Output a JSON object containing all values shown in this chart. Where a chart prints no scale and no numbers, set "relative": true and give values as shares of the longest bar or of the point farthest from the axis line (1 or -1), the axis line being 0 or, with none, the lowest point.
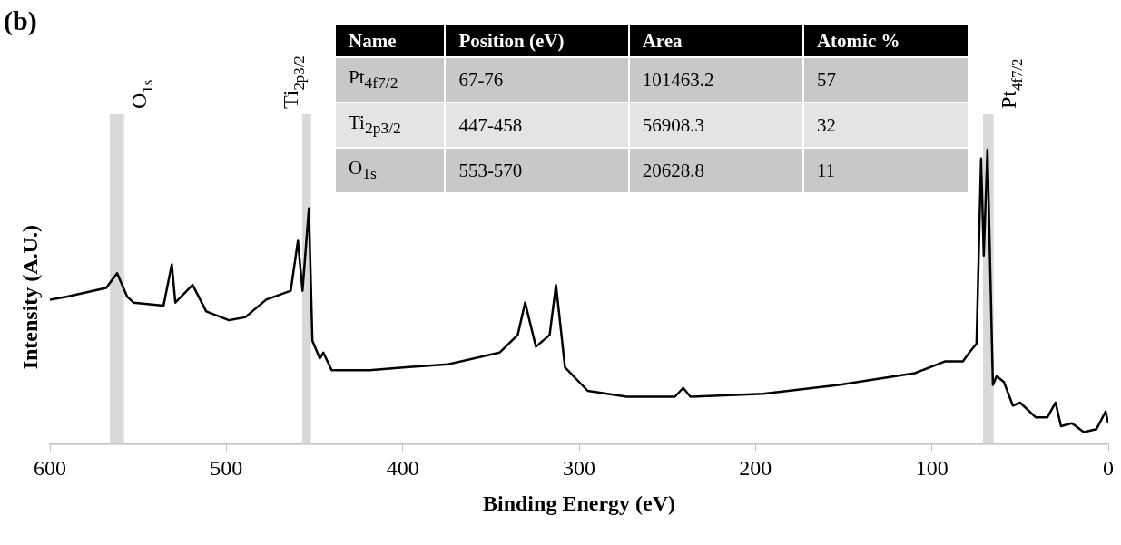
{
  "chart_data": {
    "type": "line",
    "relative": true,
    "xlabel": "Binding Energy (eV)",
    "ylabel": "Intensity (A.U.)",
    "xlim": [
      600,
      0
    ],
    "xticks": [
      600,
      500,
      400,
      300,
      200,
      100,
      0
    ],
    "series": [
      {
        "color": "#000000",
        "x": [
          600,
          590.7,
          568.1,
          561.9,
          556.2,
          552.6,
          535.6,
          530.9,
          528.9,
          519.1,
          511.4,
          498.5,
          489.3,
          477.4,
          463.5,
          459.4,
          456.8,
          453.2,
          451.2,
          447.0,
          445.0,
          440.3,
          418.7,
          398.1,
          374.4,
          345.1,
          334.8,
          330.6,
          324.5,
          316.7,
          313.1,
          308.0,
          295.1,
          273.0,
          245.7,
          241.0,
          236.9,
          195.7,
          152.9,
          109.7,
          92.7,
          82.4,
          78.8,
          74.7,
          72.1,
          70.6,
          68.5,
          65.4,
          63.3,
          59.2,
          54.1,
          50.0,
          41.2,
          34.5,
          29.9,
          26.8,
          20.6,
          13.9,
          6.7,
          1.5,
          0
        ],
        "values": [
          0.49,
          0.5,
          0.53,
          0.58,
          0.5,
          0.48,
          0.47,
          0.61,
          0.48,
          0.54,
          0.45,
          0.42,
          0.43,
          0.49,
          0.52,
          0.69,
          0.52,
          0.8,
          0.35,
          0.29,
          0.31,
          0.25,
          0.25,
          0.26,
          0.27,
          0.31,
          0.37,
          0.48,
          0.33,
          0.37,
          0.54,
          0.26,
          0.18,
          0.16,
          0.16,
          0.19,
          0.16,
          0.17,
          0.2,
          0.24,
          0.28,
          0.28,
          0.31,
          0.34,
          0.97,
          0.64,
          1,
          0.2,
          0.23,
          0.21,
          0.13,
          0.14,
          0.09,
          0.09,
          0.14,
          0.06,
          0.07,
          0.04,
          0.05,
          0.11,
          0.07
        ]
      }
    ],
    "bands": [
      {
        "axis": "x",
        "from": 566,
        "to": 558,
        "label": "O$_{1s}$",
        "color": "#d9d9d9"
      },
      {
        "axis": "x",
        "from": 457,
        "to": 452,
        "label": "Ti$_{2p3/2}$",
        "color": "#d9d9d9"
      },
      {
        "axis": "x",
        "from": 71,
        "to": 65,
        "label": "Pt$_{4f7/2}$",
        "color": "#d9d9d9"
      }
    ],
    "annotations": [
      "(b)",
      "Name",
      "Position (eV)",
      "Area",
      "Atomic %",
      "Pt$_{4f7/2}$",
      "67-76",
      "101463.2",
      "57",
      "Ti$_{2p3/2}$",
      "447-458",
      "56908.3",
      "32",
      "O$_{1s}$",
      "553-570",
      "20628.8",
      "11"
    ]
  }
}
